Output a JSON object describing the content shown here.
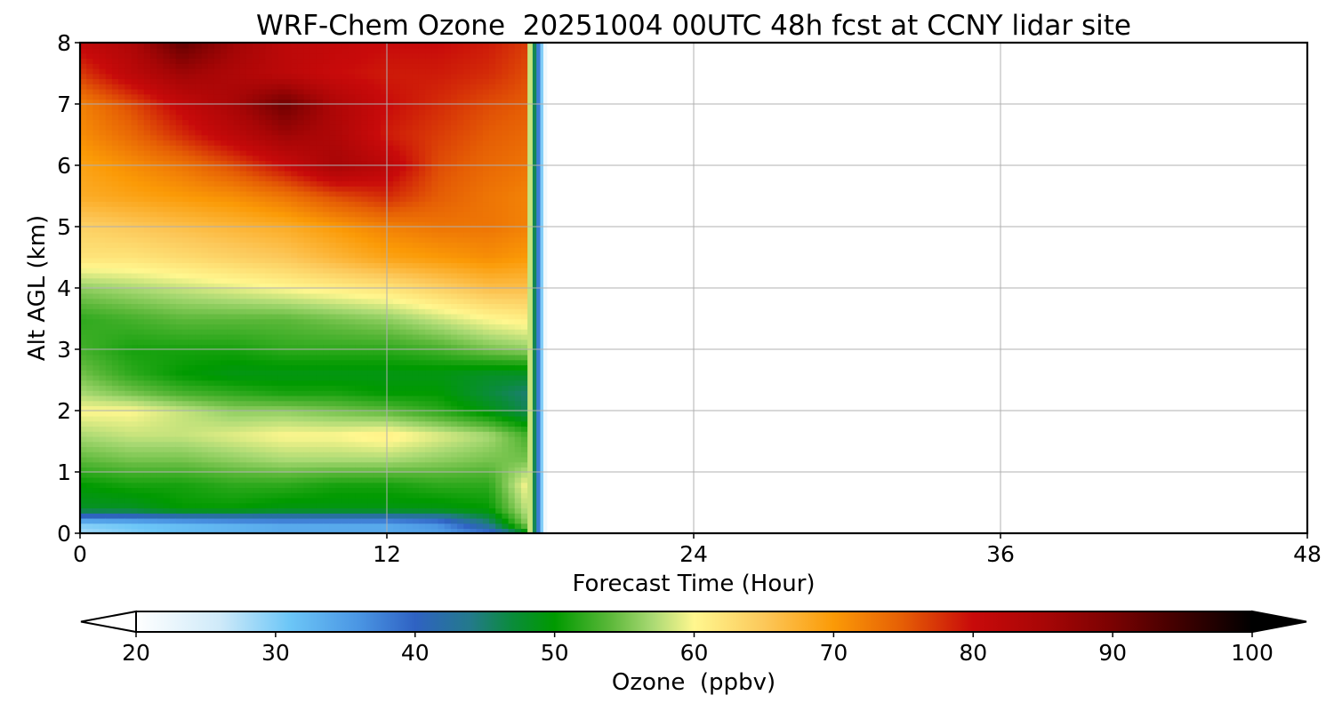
{
  "chart_data": {
    "type": "heatmap",
    "title": "WRF-Chem Ozone  20251004 00UTC 48h fcst at CCNY lidar site",
    "xlabel": "Forecast Time (Hour)",
    "ylabel": "Alt AGL (km)",
    "xlim": [
      0,
      48
    ],
    "ylim": [
      0,
      8
    ],
    "x_ticks": [
      "0",
      "12",
      "24",
      "36",
      "48"
    ],
    "y_ticks": [
      "0",
      "1",
      "2",
      "3",
      "4",
      "5",
      "6",
      "7",
      "8"
    ],
    "grid": true,
    "data_extent_hours": 18,
    "colorbar": {
      "label": "Ozone  (ppbv)",
      "range": [
        20,
        100
      ],
      "extend": "both",
      "ticks": [
        "20",
        "30",
        "40",
        "50",
        "60",
        "70",
        "80",
        "90",
        "100"
      ],
      "colors": [
        {
          "v": 20,
          "c": "#ffffff"
        },
        {
          "v": 26,
          "c": "#cfeaf9"
        },
        {
          "v": 31,
          "c": "#6cc6f7"
        },
        {
          "v": 36,
          "c": "#4a95e3"
        },
        {
          "v": 40,
          "c": "#2f62c3"
        },
        {
          "v": 44,
          "c": "#237a8a"
        },
        {
          "v": 47,
          "c": "#0a8c3a"
        },
        {
          "v": 50,
          "c": "#009a00"
        },
        {
          "v": 54,
          "c": "#5cb83a"
        },
        {
          "v": 57,
          "c": "#a9d973"
        },
        {
          "v": 60,
          "c": "#fff78f"
        },
        {
          "v": 65,
          "c": "#fcc85a"
        },
        {
          "v": 70,
          "c": "#fb9a06"
        },
        {
          "v": 75,
          "c": "#e55d05"
        },
        {
          "v": 80,
          "c": "#c80a0a"
        },
        {
          "v": 85,
          "c": "#a80606"
        },
        {
          "v": 90,
          "c": "#7a0202"
        },
        {
          "v": 95,
          "c": "#3d0000"
        },
        {
          "v": 100,
          "c": "#000000"
        }
      ]
    },
    "x_hours": [
      0,
      2,
      4,
      6,
      8,
      10,
      12,
      14,
      16,
      17.5
    ],
    "altitudes_km": [
      0,
      0.15,
      0.4,
      0.8,
      1.2,
      1.6,
      2.0,
      2.3,
      2.6,
      3.0,
      3.5,
      4.0,
      4.5,
      5.0,
      5.5,
      6.0,
      6.5,
      7.0,
      7.5,
      8.0
    ],
    "ozone_ppbv": [
      [
        28,
        30,
        32,
        33,
        34,
        34,
        34,
        35,
        38,
        48
      ],
      [
        30,
        31,
        32,
        33,
        34,
        34,
        34,
        36,
        44,
        56
      ],
      [
        48,
        48,
        50,
        50,
        49,
        49,
        49,
        49,
        50,
        58
      ],
      [
        50,
        51,
        51,
        52,
        52,
        51,
        51,
        52,
        52,
        60
      ],
      [
        54,
        55,
        55,
        56,
        57,
        57,
        57,
        56,
        55,
        55
      ],
      [
        57,
        58,
        58,
        59,
        60,
        60,
        61,
        59,
        57,
        53
      ],
      [
        60,
        60,
        58,
        56,
        56,
        55,
        54,
        52,
        49,
        46
      ],
      [
        57,
        55,
        53,
        52,
        51,
        51,
        50,
        50,
        47,
        45
      ],
      [
        55,
        52,
        50,
        49,
        49,
        49,
        49,
        49,
        48,
        48
      ],
      [
        53,
        51,
        51,
        51,
        52,
        52,
        52,
        53,
        55,
        56
      ],
      [
        52,
        53,
        54,
        54,
        54,
        55,
        56,
        58,
        60,
        61
      ],
      [
        56,
        57,
        58,
        59,
        60,
        61,
        62,
        64,
        66,
        66
      ],
      [
        62,
        62,
        63,
        64,
        65,
        67,
        69,
        70,
        71,
        70
      ],
      [
        64,
        65,
        66,
        67,
        68,
        70,
        72,
        73,
        73,
        72
      ],
      [
        68,
        69,
        70,
        71,
        73,
        76,
        78,
        75,
        73,
        72
      ],
      [
        69,
        71,
        73,
        76,
        80,
        85,
        82,
        76,
        74,
        73
      ],
      [
        71,
        74,
        78,
        82,
        86,
        84,
        79,
        77,
        75,
        74
      ],
      [
        72,
        76,
        81,
        85,
        91,
        84,
        80,
        78,
        76,
        75
      ],
      [
        77,
        82,
        86,
        84,
        82,
        80,
        79,
        79,
        78,
        76
      ],
      [
        81,
        84,
        92,
        86,
        82,
        81,
        80,
        80,
        79,
        77
      ]
    ]
  }
}
